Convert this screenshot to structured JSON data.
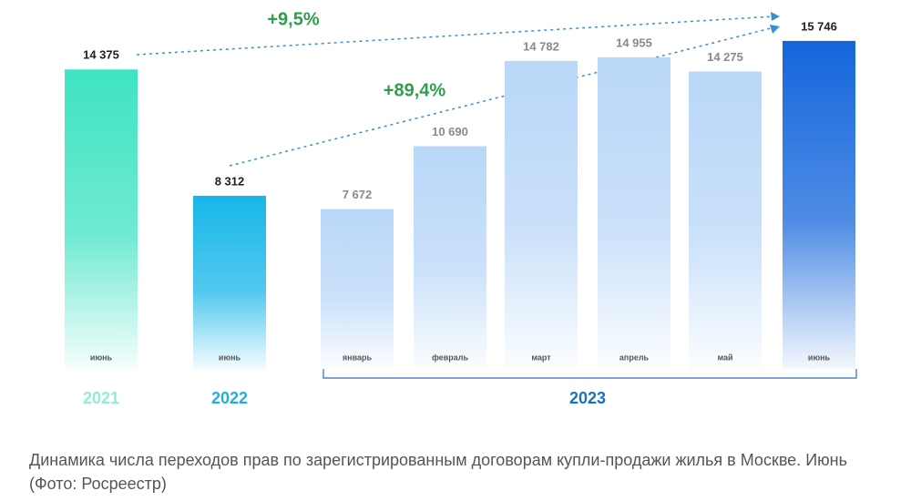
{
  "chart_data": {
    "type": "bar",
    "categories": [
      "июнь",
      "июнь",
      "январь",
      "февраль",
      "март",
      "апрель",
      "май",
      "июнь"
    ],
    "values": [
      14375,
      8312,
      7672,
      10690,
      14782,
      14955,
      14275,
      15746
    ],
    "value_labels": [
      "14 375",
      "8 312",
      "7 672",
      "10 690",
      "14 782",
      "14 955",
      "14 275",
      "15 746"
    ],
    "colors": [
      "#3fe3c3",
      "#17b6e8",
      "#b9d7f8",
      "#b9d7f8",
      "#b9d7f8",
      "#b9d7f8",
      "#b9d7f8",
      "#1466dc"
    ],
    "groups": [
      {
        "label": "2021",
        "color": "#8fecd9"
      },
      {
        "label": "2022",
        "color": "#1db1dc"
      },
      {
        "label": "2023",
        "color": "#1a70c2"
      }
    ],
    "annotations": [
      "+9,5%",
      "+89,4%"
    ],
    "caption": "Динамика числа переходов прав по зарегистрированным договорам купли-продажи жилья в Москве. Июнь (Фото: Росреестр)"
  }
}
